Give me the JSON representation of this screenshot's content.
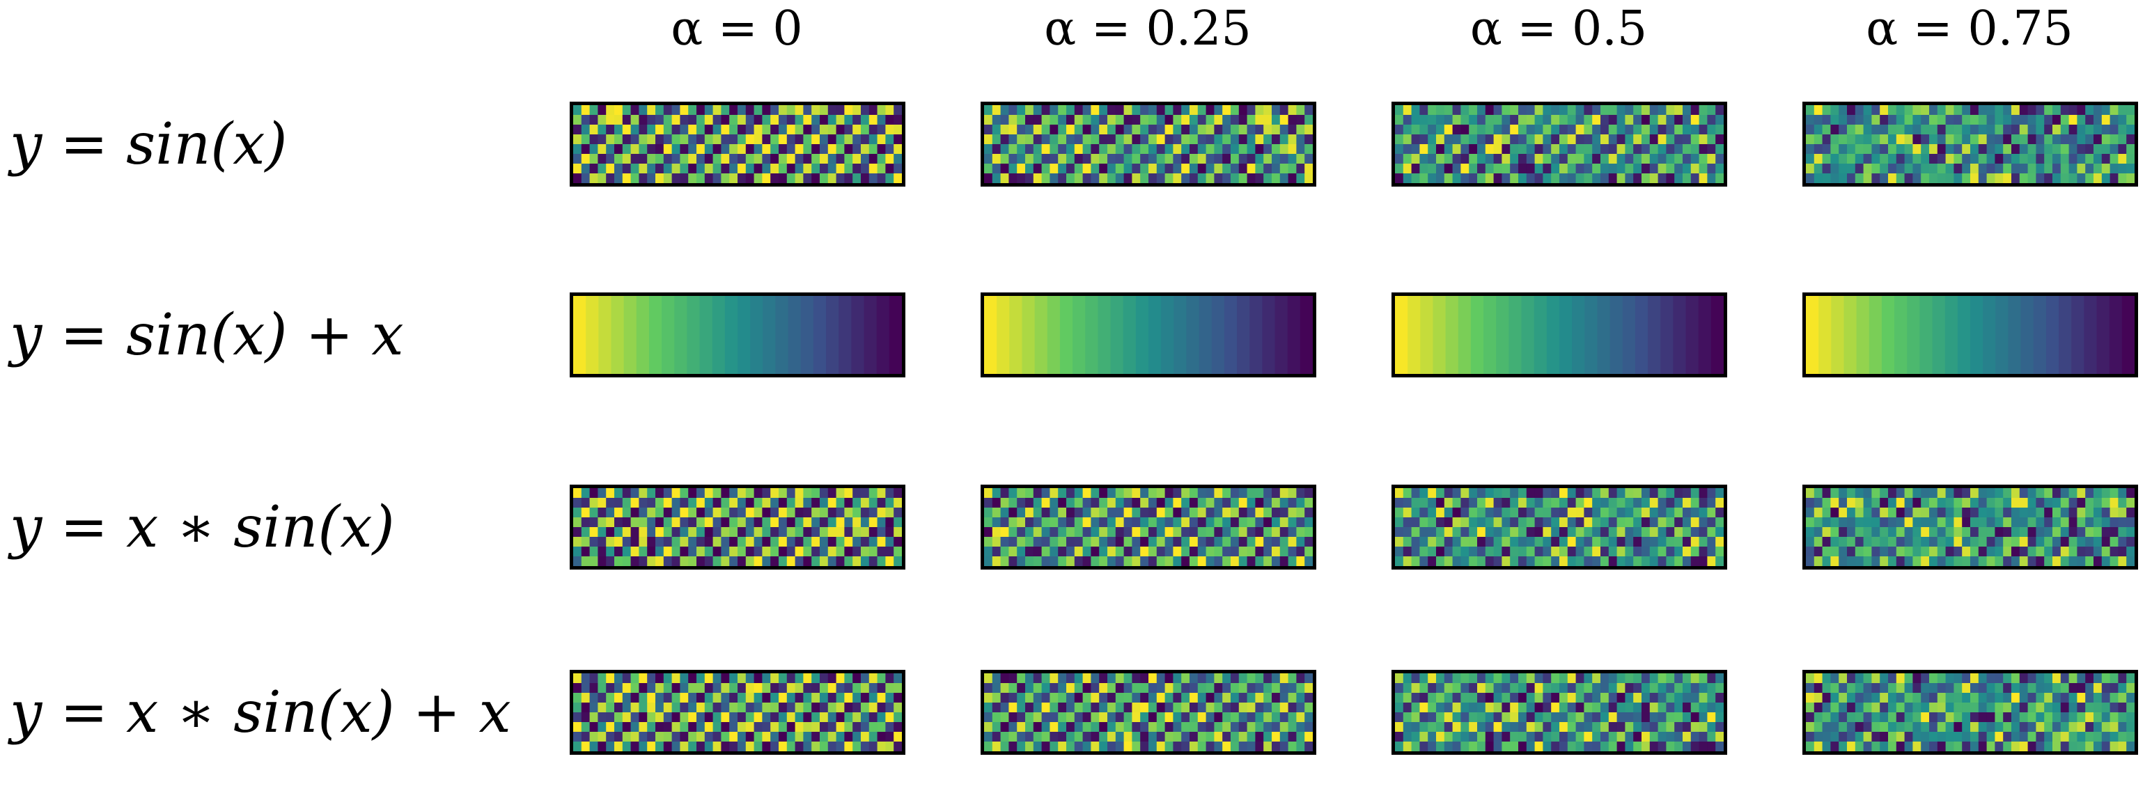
{
  "columns": [
    {
      "label": "α = 0",
      "alpha": 0
    },
    {
      "label": "α = 0.25",
      "alpha": 0.25
    },
    {
      "label": "α = 0.5",
      "alpha": 0.5
    },
    {
      "label": "α = 0.75",
      "alpha": 0.75
    }
  ],
  "rows": [
    {
      "label": "y = sin(x)",
      "function": "sin",
      "pattern": "checker"
    },
    {
      "label": "y = sin(x) + x",
      "function": "sin_plus_x",
      "pattern": "gradient"
    },
    {
      "label": "y = x ∗ sin(x)",
      "function": "x_sin",
      "pattern": "checker"
    },
    {
      "label": "y = x ∗ sin(x) + x",
      "function": "x_sin_plus_x",
      "pattern": "checker"
    }
  ],
  "colormap": [
    "#440154",
    "#3b528b",
    "#21908c",
    "#5ec962",
    "#fde725"
  ]
}
